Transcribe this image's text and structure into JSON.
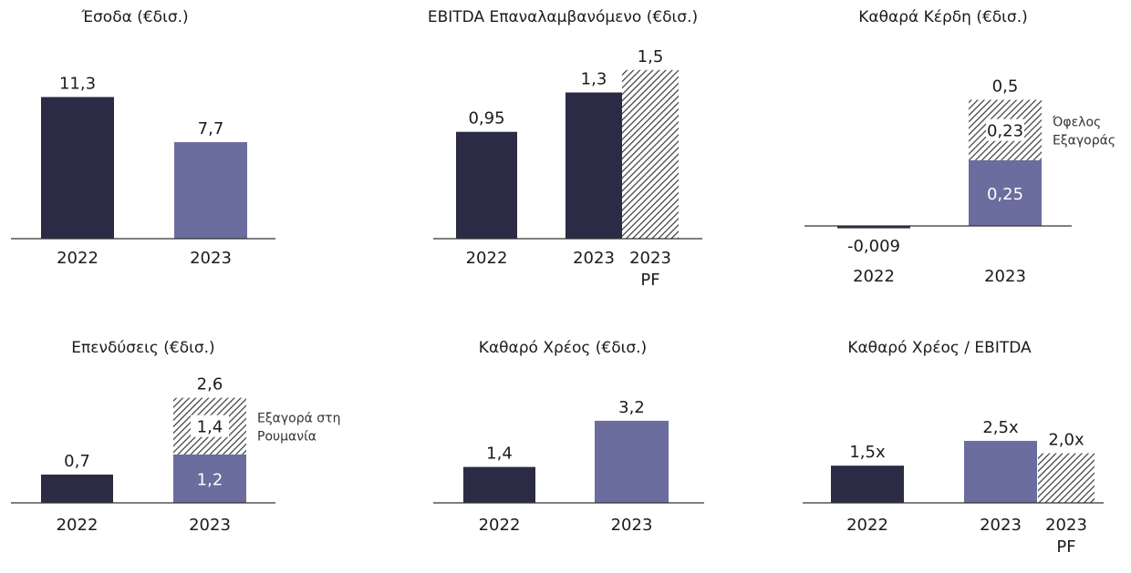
{
  "colors": {
    "dark": "#2b2b45",
    "purple": "#6a6d9d",
    "hatch": "#3a3a3a",
    "axis": "#333333",
    "text": "#1b1b1b"
  },
  "chart_data": [
    {
      "type": "bar",
      "title": "Έσοδα (€δισ.)",
      "categories": [
        "2022",
        "2023"
      ],
      "values": [
        11.3,
        7.7
      ],
      "labels": [
        "11,3",
        "7,7"
      ],
      "styles": [
        "dark",
        "purple"
      ],
      "ylim": [
        0,
        12.5
      ]
    },
    {
      "type": "bar",
      "title": "EBITDA Επαναλαμβανόμενο (€δισ.)",
      "categories": [
        "2022",
        "2023",
        "2023 PF"
      ],
      "values": [
        0.95,
        1.3,
        1.5
      ],
      "labels": [
        "0,95",
        "1,3",
        "1,5"
      ],
      "styles": [
        "dark",
        "dark",
        "hatch"
      ],
      "ylim": [
        0,
        1.62
      ]
    },
    {
      "type": "bar",
      "title": "Καθαρά Κέρδη (€δισ.)",
      "categories": [
        "2022",
        "2023"
      ],
      "values": [
        -0.009,
        0.5
      ],
      "labels": [
        "-0,009",
        "0,5"
      ],
      "styles": [
        "dark",
        "stack"
      ],
      "stack": {
        "base": 0.25,
        "base_label": "0,25",
        "top": 0.23,
        "top_label": "0,23",
        "annotation": [
          "Όφελος",
          "Εξαγοράς"
        ]
      },
      "ylim": [
        0,
        0.52
      ]
    },
    {
      "type": "bar",
      "title": "Επενδύσεις (€δισ.)",
      "categories": [
        "2022",
        "2023"
      ],
      "values": [
        0.7,
        2.6
      ],
      "labels": [
        "0,7",
        "2,6"
      ],
      "styles": [
        "dark",
        "stack"
      ],
      "stack": {
        "base": 1.2,
        "base_label": "1,2",
        "top": 1.4,
        "top_label": "1,4",
        "annotation": [
          "Εξαγορά στη",
          "Ρουμανία"
        ]
      },
      "ylim": [
        0,
        2.75
      ]
    },
    {
      "type": "bar",
      "title": "Καθαρό Χρέος (€δισ.)",
      "categories": [
        "2022",
        "2023"
      ],
      "values": [
        1.4,
        3.2
      ],
      "labels": [
        "1,4",
        "3,2"
      ],
      "styles": [
        "dark",
        "purple"
      ],
      "ylim": [
        0,
        3.48
      ]
    },
    {
      "type": "bar",
      "title": "Καθαρό Χρέος / EBITDA",
      "categories": [
        "2022",
        "2023",
        "2023 PF"
      ],
      "values": [
        1.5,
        2.5,
        2.0
      ],
      "labels": [
        "1,5x",
        "2,5x",
        "2,0x"
      ],
      "styles": [
        "dark",
        "purple",
        "hatch"
      ],
      "ylim": [
        0,
        3.6
      ]
    }
  ]
}
